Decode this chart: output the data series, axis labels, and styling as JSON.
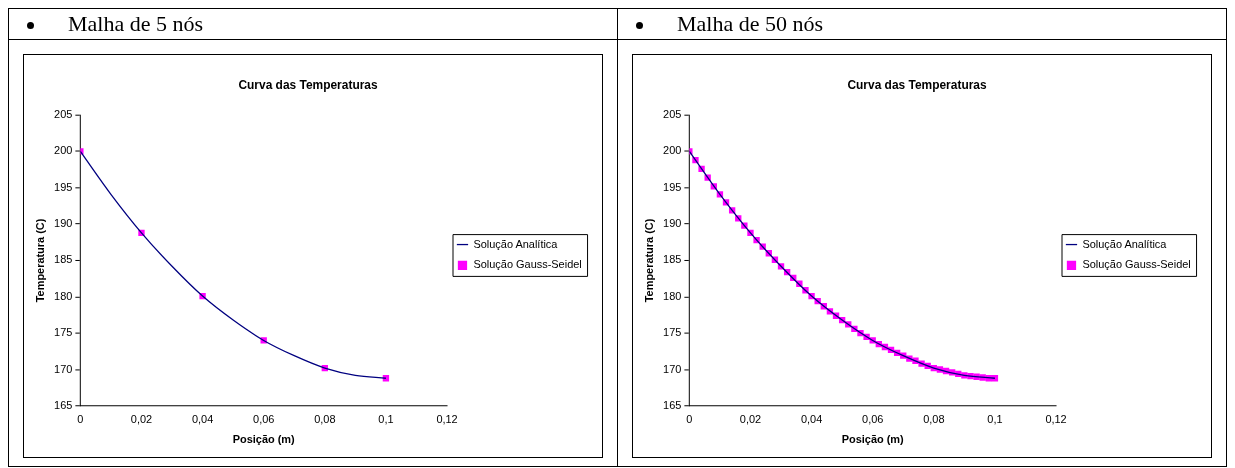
{
  "chart_data": [
    {
      "type": "line",
      "subtitle": "Malha de 5 nós",
      "title": "Curva das Temperaturas",
      "xlabel": "Posição (m)",
      "ylabel": "Temperatura (C)",
      "xlim": [
        0,
        0.12
      ],
      "xticks": [
        0,
        {
          "value": 0.02,
          "label": "0,02"
        },
        {
          "value": 0.04,
          "label": "0,04"
        },
        {
          "value": 0.06,
          "label": "0,06"
        },
        {
          "value": 0.08,
          "label": "0,08"
        },
        {
          "value": 0.1,
          "label": "0,1"
        },
        {
          "value": 0.12,
          "label": "0,12"
        }
      ],
      "ylim": [
        165,
        205
      ],
      "yticks": [
        165,
        170,
        175,
        180,
        185,
        190,
        195,
        200,
        205
      ],
      "grid": false,
      "legend": "right",
      "series": [
        {
          "name": "Solução Analítica",
          "type": "line",
          "color": "#000080",
          "marker": "none",
          "line_style": "solid",
          "x": [
            0,
            0.01,
            0.02,
            0.03,
            0.04,
            0.05,
            0.06,
            0.07,
            0.08,
            0.09,
            0.1
          ],
          "values": [
            200,
            194.1,
            188.8,
            184.2,
            180.1,
            176.8,
            174.0,
            171.9,
            170.2,
            169.2,
            168.8
          ]
        },
        {
          "name": "Solução Gauss-Seidel",
          "type": "scatter",
          "color": "#ff00ff",
          "marker": "square",
          "x": [
            0,
            0.02,
            0.04,
            0.06,
            0.08,
            0.1
          ],
          "values": [
            200,
            188.8,
            180.1,
            174.0,
            170.2,
            168.8
          ]
        }
      ]
    },
    {
      "type": "line",
      "subtitle": "Malha de 50 nós",
      "title": "Curva das Temperaturas",
      "xlabel": "Posição (m)",
      "ylabel": "Temperatura (C)",
      "xlim": [
        0,
        0.12
      ],
      "xticks": [
        0,
        {
          "value": 0.02,
          "label": "0,02"
        },
        {
          "value": 0.04,
          "label": "0,04"
        },
        {
          "value": 0.06,
          "label": "0,06"
        },
        {
          "value": 0.08,
          "label": "0,08"
        },
        {
          "value": 0.1,
          "label": "0,1"
        },
        {
          "value": 0.12,
          "label": "0,12"
        }
      ],
      "ylim": [
        165,
        205
      ],
      "yticks": [
        165,
        170,
        175,
        180,
        185,
        190,
        195,
        200,
        205
      ],
      "grid": false,
      "legend": "right",
      "series": [
        {
          "name": "Solução Analítica",
          "type": "line",
          "color": "#000080",
          "marker": "none",
          "line_style": "solid",
          "x": [
            0,
            0.01,
            0.02,
            0.03,
            0.04,
            0.05,
            0.06,
            0.07,
            0.08,
            0.09,
            0.1
          ],
          "values": [
            200,
            194.1,
            188.8,
            184.2,
            180.1,
            176.8,
            174.0,
            171.9,
            170.2,
            169.2,
            168.8
          ]
        },
        {
          "name": "Solução Gauss-Seidel",
          "type": "scatter",
          "color": "#ff00ff",
          "marker": "square",
          "x": [
            0,
            0.002,
            0.004,
            0.006,
            0.008,
            0.01,
            0.012,
            0.014,
            0.016,
            0.018,
            0.02,
            0.022,
            0.024,
            0.026,
            0.028,
            0.03,
            0.032,
            0.034,
            0.036,
            0.038,
            0.04,
            0.042,
            0.044,
            0.046,
            0.048,
            0.05,
            0.052,
            0.054,
            0.056,
            0.058,
            0.06,
            0.062,
            0.064,
            0.066,
            0.068,
            0.07,
            0.072,
            0.074,
            0.076,
            0.078,
            0.08,
            0.082,
            0.084,
            0.086,
            0.088,
            0.09,
            0.092,
            0.094,
            0.096,
            0.098,
            0.1
          ],
          "values": [
            200,
            198.8,
            197.6,
            196.4,
            195.2,
            194.1,
            193.0,
            191.9,
            190.8,
            189.8,
            188.8,
            187.8,
            186.9,
            186.0,
            185.1,
            184.2,
            183.4,
            182.6,
            181.8,
            180.9,
            180.1,
            179.4,
            178.7,
            178.0,
            177.4,
            176.8,
            176.2,
            175.6,
            175.0,
            174.5,
            174.0,
            173.5,
            173.1,
            172.7,
            172.3,
            171.9,
            171.5,
            171.2,
            170.8,
            170.5,
            170.2,
            170.0,
            169.8,
            169.6,
            169.4,
            169.2,
            169.1,
            169.0,
            168.9,
            168.8,
            168.8
          ]
        }
      ]
    }
  ]
}
